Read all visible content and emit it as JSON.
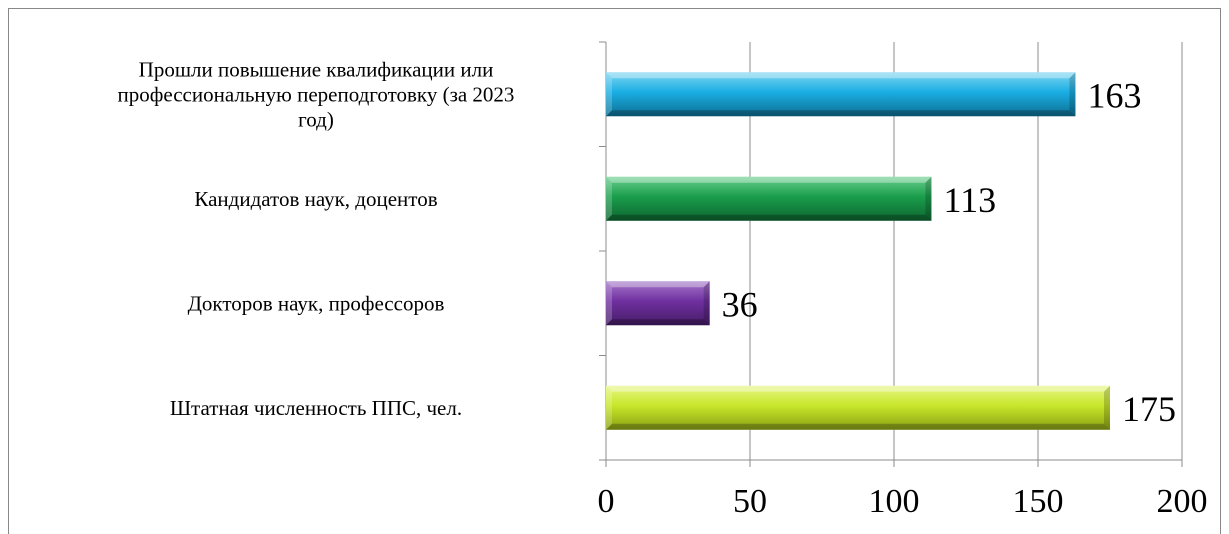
{
  "chart_data": {
    "type": "bar",
    "orientation": "horizontal",
    "categories": [
      "Прошли повышение квалификации или профессиональную переподготовку (за 2023 год)",
      "Кандидатов наук, доцентов",
      "Докторов наук, профессоров",
      "Штатная численность ППС, чел."
    ],
    "category_lines": [
      [
        "Прошли повышение квалификации или",
        "профессиональную переподготовку (за 2023",
        "год)"
      ],
      [
        "Кандидатов наук, доцентов"
      ],
      [
        "Докторов наук, профессоров"
      ],
      [
        "Штатная численность ППС, чел."
      ]
    ],
    "values": [
      163,
      113,
      36,
      175
    ],
    "value_labels": [
      "163",
      "113",
      "36",
      "175"
    ],
    "bar_colors": [
      "#1aaee3",
      "#1a9e4c",
      "#7030a0",
      "#c8e62a"
    ],
    "bar_dark_colors": [
      "#0d6f93",
      "#0e6630",
      "#451c66",
      "#8aa214"
    ],
    "bar_light_colors": [
      "#7fd6f2",
      "#6ccf8f",
      "#a577c9",
      "#e6f785"
    ],
    "xlim": [
      0,
      200
    ],
    "x_ticks": [
      "0",
      "50",
      "100",
      "150",
      "200"
    ],
    "x_tick_values": [
      0,
      50,
      100,
      150,
      200
    ],
    "grid": "vertical major gridlines",
    "legend": "none",
    "title": "",
    "xlabel": "",
    "ylabel": ""
  }
}
